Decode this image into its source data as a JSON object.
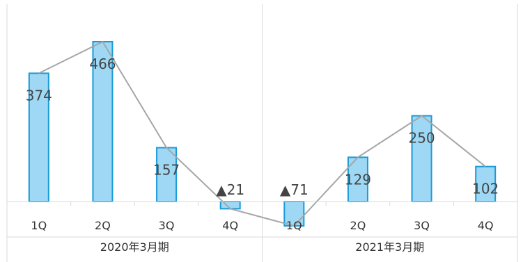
{
  "chart_data": {
    "type": "bar",
    "overlay": "line",
    "groups": [
      {
        "label": "2020年3月期",
        "categories": [
          "1Q",
          "2Q",
          "3Q",
          "4Q"
        ]
      },
      {
        "label": "2021年3月期",
        "categories": [
          "1Q",
          "2Q",
          "3Q",
          "4Q"
        ]
      }
    ],
    "values": [
      374,
      466,
      157,
      -21,
      -71,
      129,
      250,
      102
    ],
    "data_labels": [
      "374",
      "466",
      "157",
      "▲21",
      "▲71",
      "129",
      "250",
      "102"
    ],
    "bar_color": "#9ed8f5",
    "bar_border_color": "#1a9bd7",
    "line_color": "#a6a6a6",
    "grid": false,
    "legend": "none"
  }
}
